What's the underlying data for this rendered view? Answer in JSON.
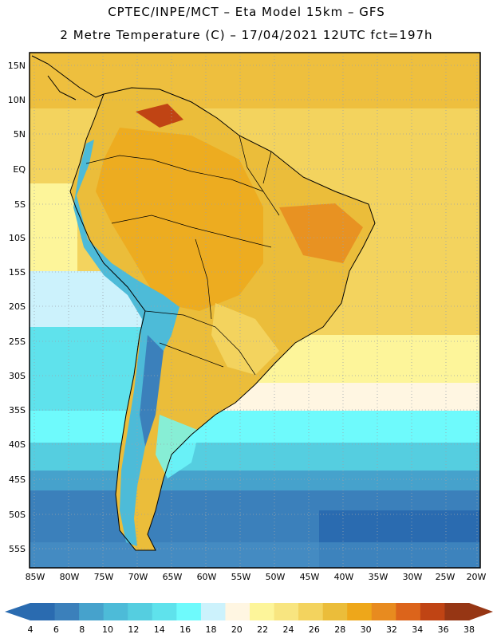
{
  "header": {
    "line1": "CPTEC/INPE/MCT –  Eta Model 15km – GFS",
    "line2": "2 Metre Temperature (C) – 17/04/2021 12UTC fct=197h"
  },
  "axes": {
    "lat_labels": [
      "15N",
      "10N",
      "5N",
      "EQ",
      "5S",
      "10S",
      "15S",
      "20S",
      "25S",
      "30S",
      "35S",
      "40S",
      "45S",
      "50S",
      "55S"
    ],
    "lon_labels": [
      "85W",
      "80W",
      "75W",
      "70W",
      "65W",
      "60W",
      "55W",
      "50W",
      "45W",
      "40W",
      "35W",
      "30W",
      "25W",
      "20W"
    ]
  },
  "colorbar": {
    "ticks": [
      "4",
      "6",
      "8",
      "10",
      "12",
      "14",
      "16",
      "18",
      "20",
      "22",
      "24",
      "26",
      "28",
      "30",
      "32",
      "34",
      "36",
      "38"
    ],
    "colors": [
      "#2a6bb0",
      "#3b80bb",
      "#46a2cc",
      "#4dbbd8",
      "#55cee0",
      "#5fe2ec",
      "#6efafc",
      "#ccf2fc",
      "#fff6e2",
      "#fdf59a",
      "#f8e580",
      "#f3d35e",
      "#ebbd3a",
      "#eea71a",
      "#e88b1f",
      "#dc641b",
      "#c04414",
      "#963614"
    ]
  }
}
